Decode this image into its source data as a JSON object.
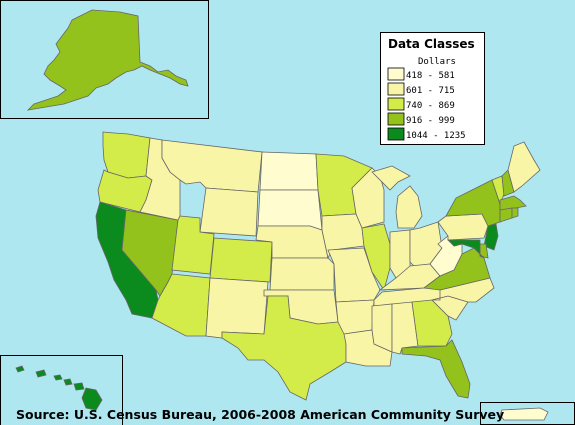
{
  "legend": {
    "title": "Data Classes",
    "subtitle": "Dollars",
    "classes": [
      {
        "label": "418 - 581",
        "color": "#fffccf"
      },
      {
        "label": "601 - 715",
        "color": "#f9f5a7"
      },
      {
        "label": "740 - 869",
        "color": "#d4ec4a"
      },
      {
        "label": "916 - 999",
        "color": "#93c21c"
      },
      {
        "label": "1044 - 1235",
        "color": "#0b8a1e"
      }
    ]
  },
  "source": "Source: U.S. Census Bureau, 2006-2008 American Community Survey",
  "colors": {
    "water": "#aee7f0",
    "state_border": "#666666"
  },
  "states": [
    {
      "id": "AK",
      "class": 3
    },
    {
      "id": "HI",
      "class": 4
    },
    {
      "id": "PR",
      "class": 0
    },
    {
      "id": "WA",
      "class": 2
    },
    {
      "id": "OR",
      "class": 2
    },
    {
      "id": "CA",
      "class": 4
    },
    {
      "id": "NV",
      "class": 3
    },
    {
      "id": "ID",
      "class": 1
    },
    {
      "id": "MT",
      "class": 1
    },
    {
      "id": "WY",
      "class": 1
    },
    {
      "id": "UT",
      "class": 2
    },
    {
      "id": "AZ",
      "class": 2
    },
    {
      "id": "CO",
      "class": 2
    },
    {
      "id": "NM",
      "class": 1
    },
    {
      "id": "ND",
      "class": 0
    },
    {
      "id": "SD",
      "class": 0
    },
    {
      "id": "NE",
      "class": 1
    },
    {
      "id": "KS",
      "class": 1
    },
    {
      "id": "OK",
      "class": 1
    },
    {
      "id": "TX",
      "class": 2
    },
    {
      "id": "MN",
      "class": 2
    },
    {
      "id": "IA",
      "class": 1
    },
    {
      "id": "MO",
      "class": 1
    },
    {
      "id": "AR",
      "class": 1
    },
    {
      "id": "LA",
      "class": 1
    },
    {
      "id": "WI",
      "class": 1
    },
    {
      "id": "IL",
      "class": 2
    },
    {
      "id": "MI",
      "class": 1
    },
    {
      "id": "IN",
      "class": 1
    },
    {
      "id": "OH",
      "class": 1
    },
    {
      "id": "KY",
      "class": 1
    },
    {
      "id": "TN",
      "class": 1
    },
    {
      "id": "MS",
      "class": 1
    },
    {
      "id": "AL",
      "class": 1
    },
    {
      "id": "GA",
      "class": 2
    },
    {
      "id": "FL",
      "class": 3
    },
    {
      "id": "SC",
      "class": 1
    },
    {
      "id": "NC",
      "class": 1
    },
    {
      "id": "VA",
      "class": 3
    },
    {
      "id": "WV",
      "class": 0
    },
    {
      "id": "PA",
      "class": 1
    },
    {
      "id": "NY",
      "class": 3
    },
    {
      "id": "VT",
      "class": 2
    },
    {
      "id": "NH",
      "class": 3
    },
    {
      "id": "ME",
      "class": 1
    },
    {
      "id": "MA",
      "class": 3
    },
    {
      "id": "CT",
      "class": 3
    },
    {
      "id": "RI",
      "class": 3
    },
    {
      "id": "NJ",
      "class": 4
    },
    {
      "id": "DE",
      "class": 3
    },
    {
      "id": "MD",
      "class": 4
    }
  ]
}
